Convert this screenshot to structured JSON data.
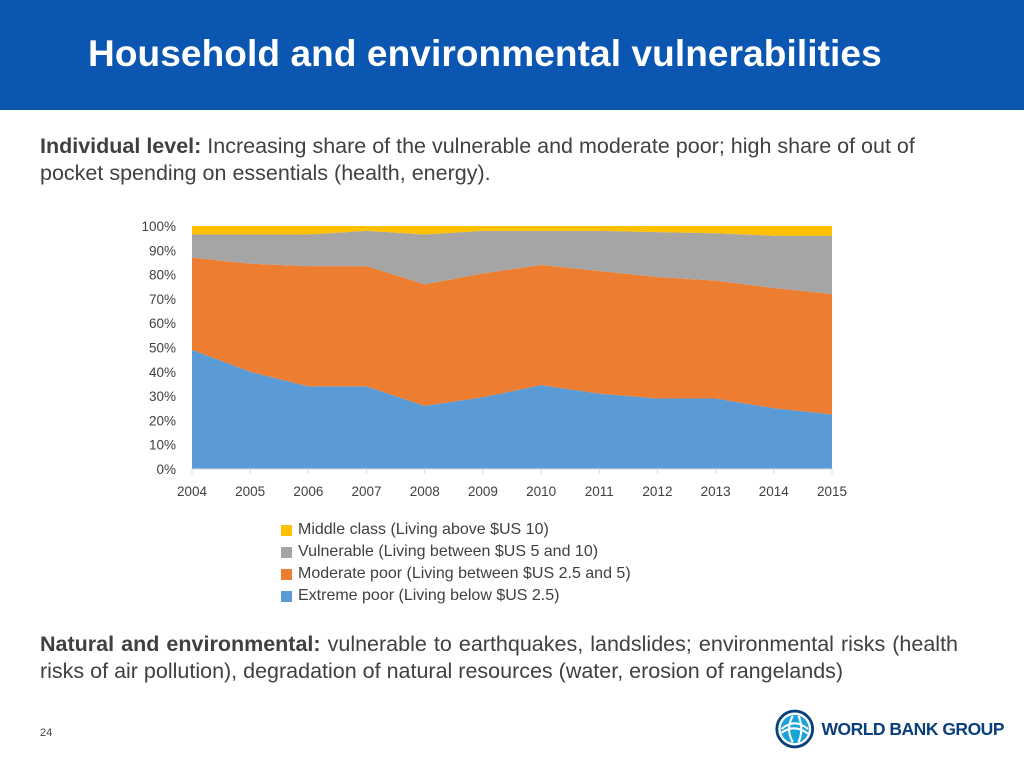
{
  "header": {
    "title": "Household and environmental vulnerabilities"
  },
  "intro": {
    "label": "Individual level:",
    "text": " Increasing share of the vulnerable and moderate poor; high share of out of pocket spending on essentials (health, energy)."
  },
  "closing": {
    "label": "Natural and environmental:",
    "text": " vulnerable to earthquakes, landslides; environmental risks (health risks of air pollution), degradation of natural resources (water, erosion of rangelands)"
  },
  "page_number": "24",
  "logo": {
    "text": "WORLD BANK GROUP",
    "icon": "globe-icon"
  },
  "colors": {
    "header_bg": "#0a56b0",
    "middle_class": "#ffc000",
    "vulnerable": "#a5a5a5",
    "moderate_poor": "#ed7d31",
    "extreme_poor": "#5b9bd5"
  },
  "chart_data": {
    "type": "area",
    "stacked": true,
    "percent": true,
    "categories": [
      "2004",
      "2005",
      "2006",
      "2007",
      "2008",
      "2009",
      "2010",
      "2011",
      "2012",
      "2013",
      "2014",
      "2015"
    ],
    "y_ticks": [
      "0%",
      "10%",
      "20%",
      "30%",
      "40%",
      "50%",
      "60%",
      "70%",
      "80%",
      "90%",
      "100%"
    ],
    "ylim": [
      0,
      100
    ],
    "legend_position": "bottom",
    "series": [
      {
        "name": "Extreme poor (Living below $US 2.5)",
        "color": "#5b9bd5",
        "values": [
          49,
          40,
          34,
          34,
          26,
          29.5,
          34.5,
          31,
          29,
          29,
          25,
          22.5
        ]
      },
      {
        "name": "Moderate poor (Living between $US 2.5 and 5)",
        "color": "#ed7d31",
        "values": [
          38,
          44.5,
          49.5,
          49.5,
          50,
          51,
          49.5,
          50.5,
          50,
          48.5,
          49.5,
          49.5
        ]
      },
      {
        "name": "Vulnerable (Living between $US 5 and 10)",
        "color": "#a5a5a5",
        "values": [
          9.5,
          12,
          13,
          14.5,
          20.5,
          17.5,
          14,
          16.5,
          18.5,
          19.5,
          21.5,
          24
        ]
      },
      {
        "name": "Middle class (Living above $US 10)",
        "color": "#ffc000",
        "values": [
          3.5,
          3.5,
          3.5,
          2,
          3.5,
          2,
          2,
          2,
          2.5,
          3,
          4,
          4
        ]
      }
    ]
  }
}
